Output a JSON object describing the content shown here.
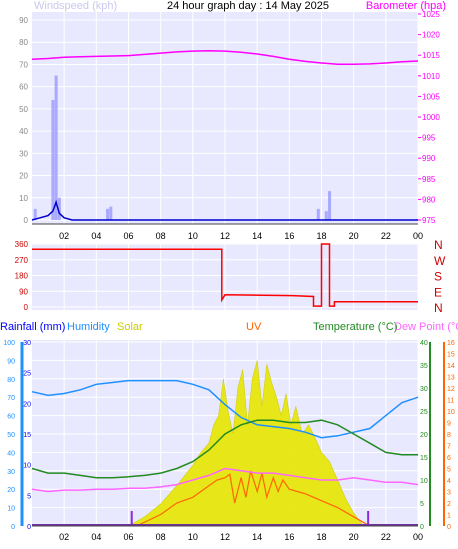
{
  "title": "24 hour graph day : 14 May 2025",
  "colors": {
    "wind": "#0000cc",
    "gust": "#9999ff",
    "barometer": "#ff00ff",
    "direction": "#ff0000",
    "rainfall": "#0000ff",
    "humidity": "#1e90ff",
    "solar": "#e6e600",
    "uv": "#ff6600",
    "temperature": "#228b22",
    "dewpoint": "#ff66ff",
    "panel": "#e8e8ff"
  },
  "x_tick_labels": [
    "02",
    "04",
    "06",
    "08",
    "10",
    "12",
    "14",
    "16",
    "18",
    "20",
    "22",
    "00"
  ],
  "chart_data": [
    {
      "type": "line",
      "panel": "wind-barometer",
      "hours": [
        0,
        1,
        2,
        3,
        4,
        5,
        6,
        7,
        8,
        9,
        10,
        11,
        12,
        13,
        14,
        15,
        16,
        17,
        18,
        19,
        20,
        21,
        22,
        23,
        24
      ],
      "left_axis": {
        "label": "Windspeed (kph)",
        "ylim": [
          0,
          90
        ],
        "ticks": [
          0,
          10,
          20,
          30,
          40,
          50,
          60,
          70,
          80,
          90
        ]
      },
      "right_axis": {
        "label": "Barometer (hpa)",
        "ylim": [
          975,
          1025
        ],
        "ticks": [
          975,
          980,
          985,
          990,
          995,
          1000,
          1005,
          1010,
          1015,
          1020,
          1025
        ]
      },
      "series": [
        {
          "name": "Barometer (hpa)",
          "axis": "right",
          "x": [
            0,
            1,
            2,
            3,
            4,
            5,
            6,
            7,
            8,
            9,
            10,
            11,
            12,
            13,
            14,
            15,
            16,
            17,
            18,
            19,
            20,
            21,
            22,
            23,
            24
          ],
          "values": [
            1014,
            1014.2,
            1014.5,
            1014.6,
            1014.7,
            1014.8,
            1014.9,
            1015.2,
            1015.5,
            1015.8,
            1016,
            1016.1,
            1016,
            1015.7,
            1015.3,
            1014.7,
            1014,
            1013.5,
            1013.1,
            1012.8,
            1012.8,
            1012.9,
            1013.1,
            1013.4,
            1013.6
          ]
        },
        {
          "name": "Windspeed (kph)",
          "axis": "left",
          "x": [
            0,
            0.5,
            1,
            1.3,
            1.5,
            1.7,
            2,
            2.5,
            3,
            5,
            8,
            12,
            16,
            18,
            20,
            22,
            24
          ],
          "values": [
            0,
            1,
            2,
            4,
            8,
            3,
            1,
            0,
            0,
            0,
            0,
            0,
            0,
            0,
            0,
            0,
            0
          ]
        },
        {
          "name": "Gust",
          "axis": "left",
          "bars": [
            [
              0.2,
              5
            ],
            [
              1.3,
              54
            ],
            [
              1.5,
              65
            ],
            [
              1.7,
              10
            ],
            [
              4.7,
              5
            ],
            [
              4.9,
              6
            ],
            [
              17.8,
              5
            ],
            [
              18.3,
              4
            ],
            [
              18.5,
              13
            ]
          ]
        }
      ]
    },
    {
      "type": "line",
      "panel": "wind-direction",
      "left_axis": {
        "ylim": [
          0,
          360
        ],
        "ticks": [
          0,
          90,
          180,
          270,
          360
        ]
      },
      "compass_labels": [
        "N",
        "W",
        "S",
        "E",
        "N"
      ],
      "series": [
        {
          "name": "Wind direction",
          "x": [
            0,
            11.8,
            11.8,
            12,
            16.2,
            17.5,
            17.5,
            18,
            18,
            18.5,
            18.5,
            18.8,
            18.8,
            24
          ],
          "values": [
            330,
            330,
            40,
            70,
            65,
            60,
            5,
            5,
            360,
            360,
            5,
            5,
            30,
            30
          ]
        }
      ]
    },
    {
      "type": "line",
      "panel": "multi",
      "axis_labels": {
        "rainfall": "Rainfall (mm)",
        "humidity": "Humidity",
        "solar": "Solar",
        "uv": "UV",
        "temperature": "Temperature (°C)",
        "dewpoint": "Dew Point (°C)"
      },
      "humidity_axis": {
        "ylim": [
          0,
          100
        ],
        "ticks": [
          0,
          10,
          20,
          30,
          40,
          50,
          60,
          70,
          80,
          90,
          100
        ]
      },
      "rain_axis": {
        "ylim": [
          0,
          30
        ],
        "ticks": [
          0,
          5,
          10,
          15,
          20,
          25,
          30
        ]
      },
      "temp_axis": {
        "ylim": [
          0,
          40
        ],
        "ticks": [
          0,
          5,
          10,
          15,
          20,
          25,
          30,
          35,
          40
        ]
      },
      "uv_axis": {
        "ylim": [
          0,
          16
        ],
        "ticks": [
          0,
          1,
          2,
          3,
          4,
          5,
          6,
          7,
          8,
          9,
          10,
          11,
          12,
          13,
          14,
          15,
          16
        ]
      },
      "series": [
        {
          "name": "Humidity",
          "x": [
            0,
            1,
            2,
            3,
            4,
            5,
            6,
            7,
            8,
            9,
            10,
            11,
            12,
            13,
            14,
            15,
            16,
            17,
            18,
            19,
            20,
            21,
            22,
            23,
            24
          ],
          "values": [
            73,
            71,
            72,
            74,
            77,
            78,
            79,
            79,
            79,
            79,
            77,
            74,
            66,
            59,
            55,
            54,
            53,
            51,
            48,
            49,
            51,
            53,
            60,
            67,
            70
          ]
        },
        {
          "name": "Temperature (°C)",
          "x": [
            0,
            1,
            2,
            3,
            4,
            5,
            6,
            7,
            8,
            9,
            10,
            11,
            12,
            13,
            14,
            15,
            16,
            17,
            18,
            19,
            20,
            21,
            22,
            23,
            24
          ],
          "values": [
            12.5,
            11.5,
            11.5,
            11,
            10.5,
            10.5,
            10.7,
            11,
            11.5,
            12.5,
            14,
            16.5,
            20,
            22,
            23,
            23,
            22.5,
            22.5,
            23,
            22,
            20,
            18,
            16,
            15.5,
            15.5
          ]
        },
        {
          "name": "Dew Point (°C)",
          "x": [
            0,
            1,
            2,
            3,
            4,
            5,
            6,
            7,
            8,
            9,
            10,
            11,
            12,
            13,
            14,
            15,
            16,
            17,
            18,
            19,
            20,
            21,
            22,
            23,
            24
          ],
          "values": [
            8,
            7.5,
            7.8,
            7.8,
            8,
            8,
            8.2,
            8.2,
            8.5,
            9,
            10,
            11,
            12.5,
            12,
            11.5,
            11.5,
            11,
            10.5,
            10,
            10,
            10.5,
            10,
            9.5,
            9.5,
            9
          ]
        },
        {
          "name": "Solar",
          "x": [
            6,
            7,
            8,
            9,
            10,
            10.5,
            11,
            11.3,
            11.6,
            11.9,
            12.2,
            12.5,
            12.8,
            13.1,
            13.4,
            13.7,
            14,
            14.3,
            14.6,
            14.9,
            15.2,
            15.5,
            15.8,
            16.1,
            16.4,
            16.8,
            17.2,
            17.6,
            18,
            18.5,
            19,
            19.5,
            20,
            20.6
          ],
          "values": [
            0,
            5,
            12,
            22,
            33,
            40,
            45,
            55,
            60,
            80,
            62,
            50,
            75,
            85,
            55,
            80,
            90,
            65,
            88,
            78,
            70,
            60,
            72,
            55,
            65,
            50,
            55,
            48,
            40,
            35,
            25,
            15,
            7,
            0
          ]
        },
        {
          "name": "UV",
          "x": [
            6.5,
            8,
            9,
            10,
            11,
            11.5,
            12,
            12.3,
            12.6,
            13,
            13.3,
            13.6,
            14,
            14.3,
            14.6,
            15,
            15.3,
            15.6,
            16,
            16.5,
            17,
            18,
            19,
            20,
            21
          ],
          "values": [
            0,
            1,
            2,
            2.5,
            3.5,
            4,
            4.2,
            4.5,
            2,
            4.2,
            2.5,
            4.8,
            3,
            4.6,
            2.5,
            4.2,
            3,
            4,
            3.2,
            3,
            2.8,
            2.2,
            1.6,
            0.8,
            0
          ]
        },
        {
          "name": "Rainfall (mm)",
          "markers": [
            6.2,
            20.9
          ]
        }
      ]
    }
  ]
}
